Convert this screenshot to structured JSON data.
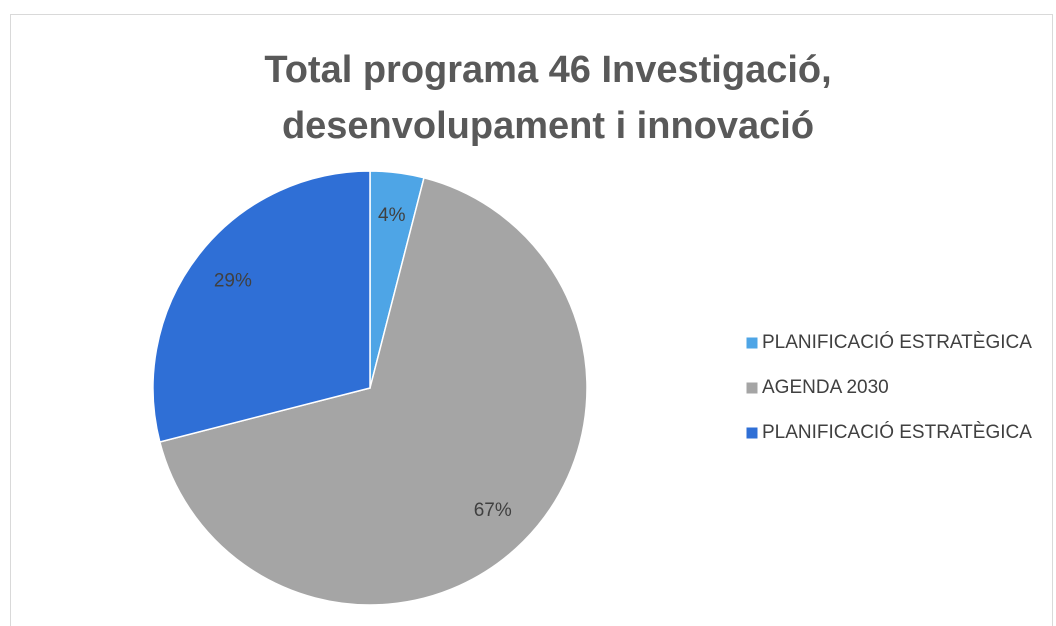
{
  "chart_data": {
    "type": "pie",
    "title": [
      "Total programa 46 Investigació,",
      "desenvolupament i innovació"
    ],
    "categories": [
      "PLANIFICACIÓ ESTRATÈGICA",
      "AGENDA 2030",
      "PLANIFICACIÓ ESTRATÈGICA"
    ],
    "values": [
      4,
      67,
      29
    ],
    "value_labels": [
      "4%",
      "67%",
      "29%"
    ],
    "colors": [
      "#4ea5e6",
      "#a5a5a5",
      "#2f6fd6"
    ],
    "legend": "right"
  }
}
